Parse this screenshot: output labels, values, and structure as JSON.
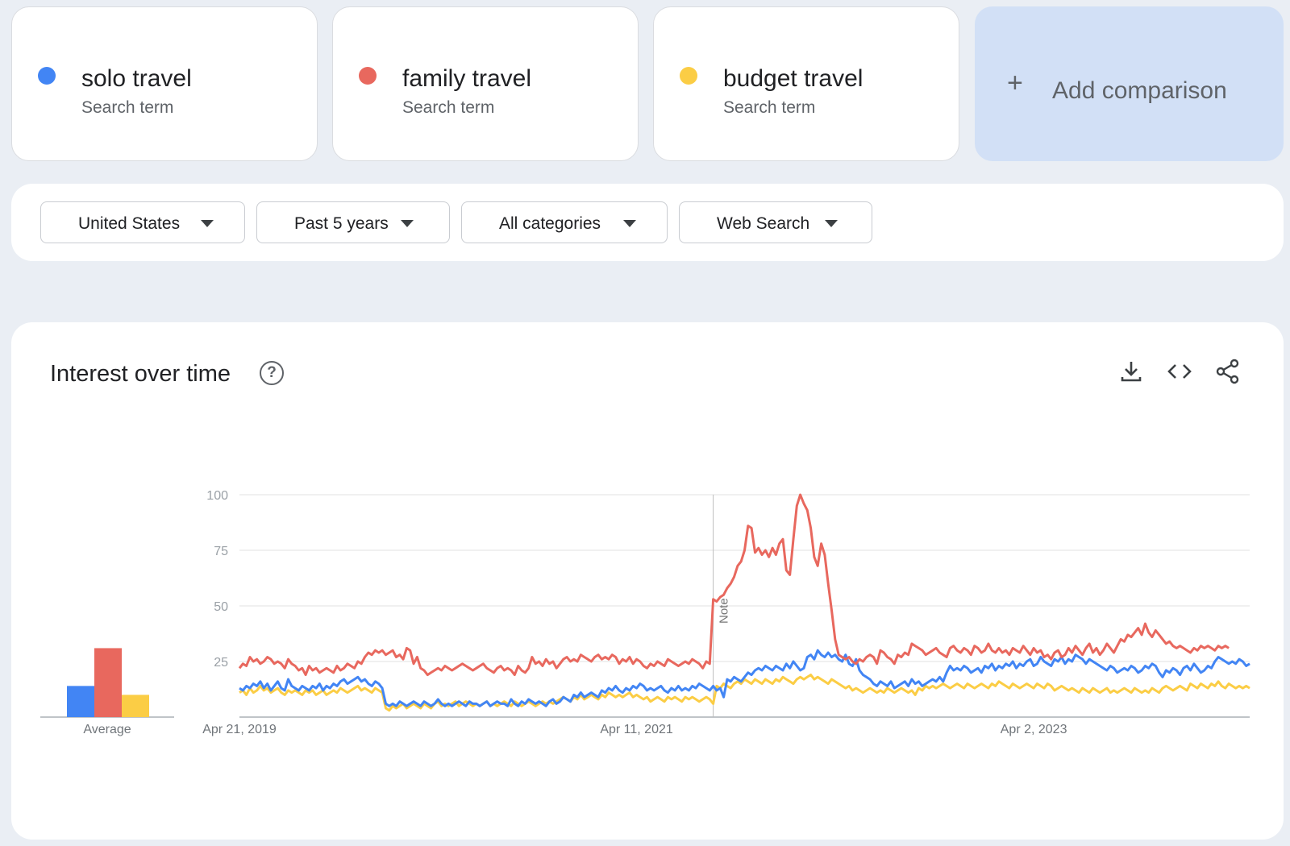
{
  "terms": [
    {
      "name": "solo travel",
      "subtitle": "Search term",
      "color": "#4285f4"
    },
    {
      "name": "family travel",
      "subtitle": "Search term",
      "color": "#e8685e"
    },
    {
      "name": "budget travel",
      "subtitle": "Search term",
      "color": "#fbcd45"
    }
  ],
  "add_comparison": {
    "label": "Add comparison",
    "icon": "plus-icon"
  },
  "filters": [
    {
      "label": "United States",
      "icon": "caret-down-icon"
    },
    {
      "label": "Past 5 years",
      "icon": "caret-down-icon"
    },
    {
      "label": "All categories",
      "icon": "caret-down-icon"
    },
    {
      "label": "Web Search",
      "icon": "caret-down-icon"
    }
  ],
  "chart_panel": {
    "title": "Interest over time",
    "help_icon": "help-circle-icon",
    "tools": [
      "download-icon",
      "embed-code-icon",
      "share-icon"
    ]
  },
  "chart_data": [
    {
      "type": "bar",
      "categories": [
        "solo travel",
        "family travel",
        "budget travel"
      ],
      "values": [
        14,
        31,
        10
      ],
      "xlabel": "Average",
      "colors": [
        "#4285f4",
        "#e8685e",
        "#fbcd45"
      ]
    },
    {
      "type": "line",
      "x_start": "Apr 21, 2019",
      "x_ticks": [
        "Apr 21, 2019",
        "Apr 11, 2021",
        "Apr 2, 2023"
      ],
      "y_ticks": [
        25,
        50,
        75,
        100
      ],
      "ylim": [
        0,
        100
      ],
      "grid": true,
      "annotation": {
        "label": "Note",
        "x_index": 136
      },
      "series": [
        {
          "name": "solo travel",
          "color": "#4285f4",
          "values": [
            13,
            12,
            14,
            13,
            15,
            14,
            16,
            13,
            15,
            12,
            14,
            16,
            13,
            12,
            17,
            14,
            13,
            12,
            14,
            13,
            12,
            14,
            13,
            15,
            12,
            14,
            13,
            15,
            14,
            16,
            17,
            15,
            16,
            17,
            18,
            16,
            17,
            15,
            14,
            16,
            15,
            13,
            6,
            5,
            6,
            5,
            7,
            6,
            5,
            6,
            7,
            6,
            5,
            7,
            6,
            5,
            6,
            8,
            6,
            5,
            6,
            5,
            6,
            7,
            6,
            5,
            7,
            6,
            6,
            5,
            6,
            7,
            5,
            6,
            7,
            6,
            6,
            5,
            8,
            6,
            5,
            7,
            6,
            8,
            7,
            6,
            7,
            6,
            5,
            7,
            8,
            6,
            7,
            9,
            8,
            7,
            10,
            9,
            11,
            9,
            10,
            11,
            10,
            9,
            12,
            11,
            13,
            12,
            14,
            12,
            11,
            13,
            12,
            14,
            13,
            15,
            14,
            12,
            13,
            12,
            13,
            14,
            12,
            11,
            13,
            12,
            14,
            12,
            13,
            12,
            14,
            13,
            15,
            14,
            13,
            12,
            14,
            12,
            13,
            9,
            17,
            16,
            18,
            17,
            16,
            18,
            20,
            19,
            21,
            22,
            21,
            23,
            22,
            21,
            23,
            22,
            21,
            24,
            22,
            25,
            23,
            21,
            22,
            27,
            28,
            26,
            30,
            28,
            27,
            29,
            27,
            28,
            26,
            25,
            28,
            24,
            23,
            26,
            21,
            19,
            18,
            17,
            15,
            14,
            16,
            15,
            14,
            16,
            13,
            14,
            15,
            16,
            14,
            17,
            15,
            16,
            14,
            15,
            16,
            17,
            16,
            18,
            16,
            20,
            23,
            21,
            22,
            21,
            23,
            22,
            20,
            21,
            22,
            20,
            23,
            22,
            24,
            21,
            23,
            22,
            24,
            23,
            25,
            22,
            24,
            23,
            25,
            26,
            23,
            24,
            27,
            25,
            24,
            23,
            26,
            25,
            27,
            24,
            26,
            25,
            28,
            27,
            26,
            24,
            26,
            25,
            24,
            23,
            22,
            21,
            23,
            22,
            20,
            21,
            22,
            21,
            23,
            22,
            20,
            21,
            23,
            22,
            24,
            23,
            20,
            18,
            21,
            20,
            22,
            21,
            19,
            22,
            23,
            21,
            24,
            22,
            20,
            21,
            23,
            22,
            25,
            27,
            26,
            25,
            24,
            25,
            24,
            26,
            25,
            23,
            24
          ],
          "values_note": "weekly interest 0-100"
        },
        {
          "name": "family travel",
          "color": "#e8685e",
          "values": [
            22,
            24,
            23,
            27,
            25,
            26,
            24,
            25,
            27,
            26,
            24,
            25,
            24,
            22,
            26,
            24,
            23,
            21,
            22,
            19,
            23,
            21,
            22,
            20,
            21,
            22,
            21,
            20,
            23,
            21,
            22,
            24,
            23,
            22,
            25,
            24,
            27,
            29,
            28,
            30,
            29,
            30,
            28,
            29,
            30,
            27,
            28,
            26,
            31,
            30,
            24,
            27,
            22,
            21,
            19,
            20,
            21,
            22,
            21,
            23,
            22,
            21,
            22,
            23,
            24,
            23,
            22,
            21,
            22,
            23,
            24,
            22,
            21,
            20,
            22,
            23,
            21,
            22,
            21,
            19,
            23,
            21,
            20,
            22,
            27,
            24,
            25,
            23,
            26,
            24,
            25,
            22,
            24,
            26,
            27,
            25,
            26,
            25,
            28,
            27,
            26,
            25,
            27,
            28,
            26,
            27,
            26,
            28,
            27,
            24,
            26,
            25,
            27,
            24,
            26,
            25,
            23,
            22,
            24,
            23,
            25,
            24,
            23,
            26,
            25,
            24,
            23,
            24,
            25,
            24,
            26,
            25,
            24,
            22,
            25,
            24,
            53,
            52,
            54,
            55,
            58,
            60,
            63,
            68,
            70,
            75,
            86,
            85,
            74,
            76,
            73,
            75,
            72,
            76,
            73,
            78,
            80,
            66,
            64,
            80,
            95,
            100,
            96,
            93,
            85,
            72,
            68,
            78,
            73,
            60,
            48,
            35,
            28,
            27,
            26,
            27,
            25,
            24,
            26,
            25,
            27,
            28,
            27,
            24,
            30,
            29,
            27,
            26,
            24,
            28,
            27,
            29,
            28,
            33,
            32,
            31,
            30,
            28,
            29,
            30,
            31,
            29,
            28,
            27,
            31,
            32,
            30,
            29,
            31,
            30,
            28,
            32,
            31,
            29,
            30,
            33,
            30,
            29,
            31,
            29,
            30,
            28,
            31,
            30,
            29,
            32,
            30,
            28,
            31,
            29,
            30,
            27,
            28,
            26,
            29,
            30,
            27,
            28,
            31,
            29,
            32,
            30,
            28,
            31,
            33,
            29,
            31,
            28,
            30,
            33,
            31,
            29,
            32,
            35,
            34,
            37,
            36,
            38,
            40,
            37,
            42,
            38,
            36,
            39,
            37,
            35,
            33,
            34,
            32,
            31,
            32,
            31,
            30,
            29,
            31,
            30,
            32,
            31,
            32,
            31,
            30,
            32,
            31,
            32,
            31
          ]
        },
        {
          "name": "budget travel",
          "color": "#fbcd45",
          "values": [
            11,
            12,
            10,
            13,
            11,
            12,
            14,
            12,
            13,
            11,
            12,
            13,
            11,
            10,
            12,
            11,
            12,
            11,
            10,
            12,
            11,
            12,
            10,
            11,
            12,
            10,
            11,
            12,
            11,
            13,
            12,
            11,
            12,
            13,
            14,
            12,
            13,
            12,
            11,
            13,
            12,
            11,
            4,
            3,
            5,
            4,
            5,
            6,
            4,
            5,
            6,
            5,
            4,
            6,
            5,
            4,
            6,
            7,
            5,
            6,
            5,
            6,
            7,
            5,
            6,
            7,
            6,
            5,
            6,
            5,
            6,
            7,
            5,
            6,
            5,
            6,
            7,
            6,
            5,
            7,
            6,
            5,
            6,
            7,
            6,
            5,
            6,
            7,
            6,
            7,
            6,
            7,
            8,
            9,
            8,
            7,
            9,
            8,
            10,
            8,
            9,
            10,
            9,
            8,
            10,
            9,
            11,
            10,
            9,
            10,
            9,
            10,
            11,
            9,
            10,
            9,
            8,
            9,
            7,
            8,
            9,
            8,
            7,
            9,
            8,
            9,
            8,
            7,
            9,
            8,
            9,
            8,
            7,
            8,
            9,
            8,
            6,
            14,
            13,
            15,
            14,
            13,
            15,
            16,
            15,
            17,
            16,
            15,
            17,
            16,
            15,
            17,
            16,
            15,
            17,
            16,
            18,
            17,
            16,
            15,
            17,
            18,
            17,
            18,
            19,
            17,
            18,
            17,
            16,
            15,
            17,
            16,
            15,
            14,
            13,
            14,
            12,
            13,
            12,
            11,
            12,
            13,
            12,
            11,
            12,
            11,
            13,
            12,
            11,
            12,
            13,
            12,
            11,
            12,
            10,
            13,
            12,
            14,
            13,
            14,
            13,
            14,
            15,
            14,
            13,
            14,
            15,
            14,
            13,
            15,
            14,
            13,
            14,
            15,
            14,
            13,
            15,
            14,
            16,
            15,
            14,
            13,
            15,
            14,
            13,
            14,
            15,
            14,
            13,
            15,
            14,
            13,
            15,
            14,
            12,
            13,
            14,
            13,
            12,
            13,
            12,
            11,
            13,
            12,
            11,
            13,
            12,
            11,
            12,
            13,
            11,
            12,
            11,
            12,
            13,
            12,
            11,
            13,
            12,
            11,
            12,
            11,
            13,
            12,
            11,
            13,
            14,
            13,
            12,
            13,
            14,
            13,
            12,
            15,
            14,
            13,
            15,
            14,
            13,
            15,
            14,
            16,
            14,
            13,
            15,
            14,
            13,
            14,
            13,
            14,
            13
          ]
        }
      ]
    }
  ]
}
